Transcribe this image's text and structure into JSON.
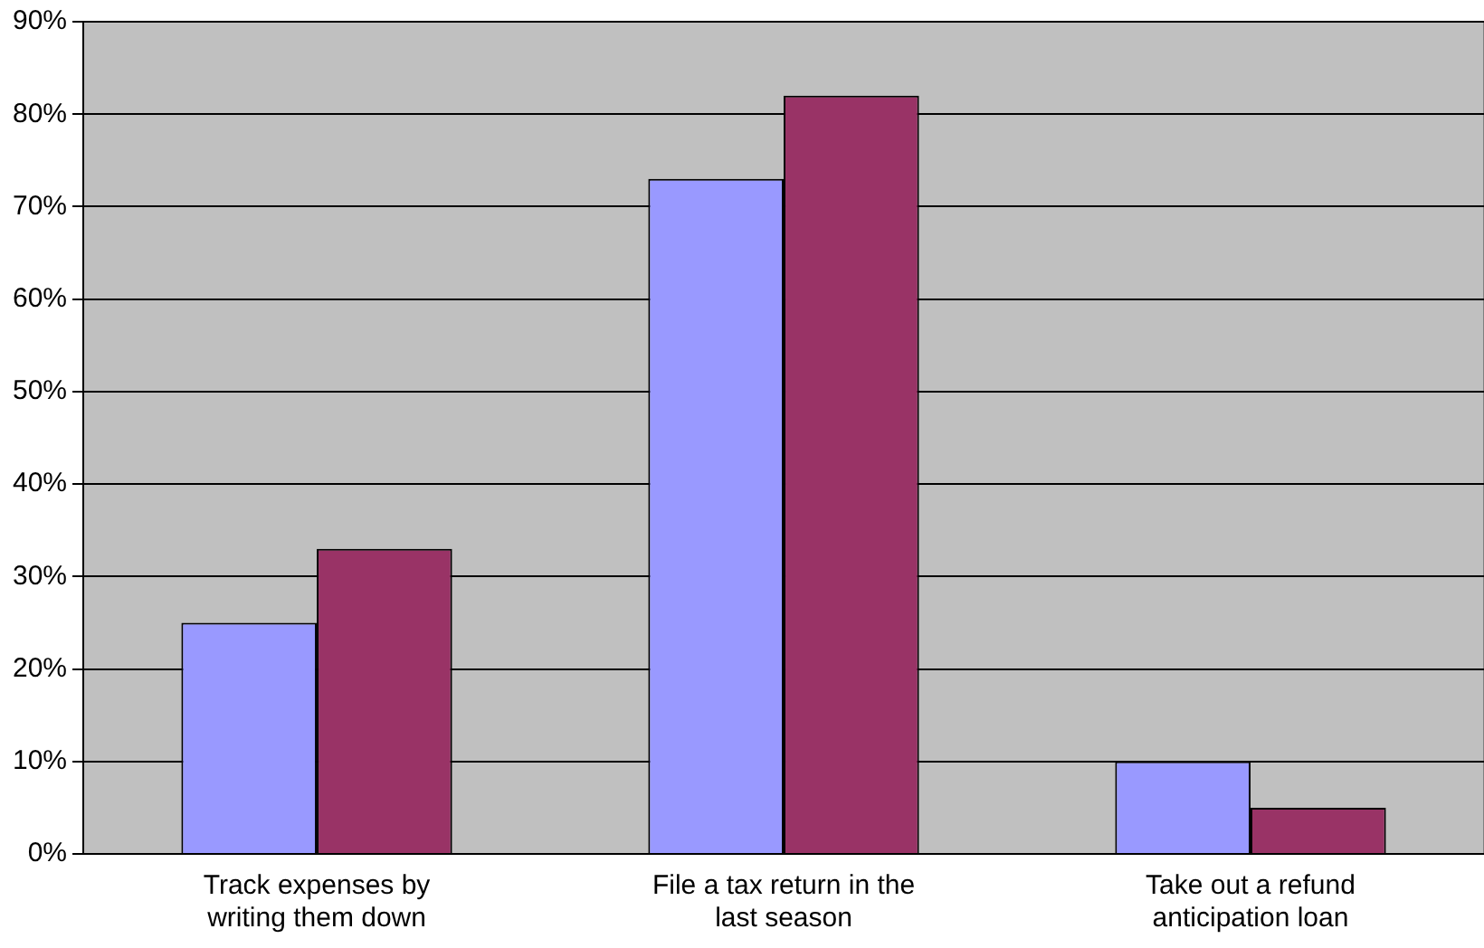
{
  "chart_data": {
    "type": "bar",
    "categories": [
      "Track expenses by writing them down",
      "File a tax return in the last season",
      "Take out a refund anticipation loan"
    ],
    "series": [
      {
        "color": "#9999ff",
        "values": [
          25,
          73,
          10
        ]
      },
      {
        "color": "#993366",
        "values": [
          33,
          82,
          5
        ]
      }
    ],
    "ylim": [
      0,
      90
    ],
    "yticks": [
      {
        "value": 0,
        "label": "0%"
      },
      {
        "value": 10,
        "label": "10%"
      },
      {
        "value": 20,
        "label": "20%"
      },
      {
        "value": 30,
        "label": "30%"
      },
      {
        "value": 40,
        "label": "40%"
      },
      {
        "value": 50,
        "label": "50%"
      },
      {
        "value": 60,
        "label": "60%"
      },
      {
        "value": 70,
        "label": "70%"
      },
      {
        "value": 80,
        "label": "80%"
      },
      {
        "value": 90,
        "label": "90%"
      }
    ],
    "grid": "y",
    "legend": false
  }
}
